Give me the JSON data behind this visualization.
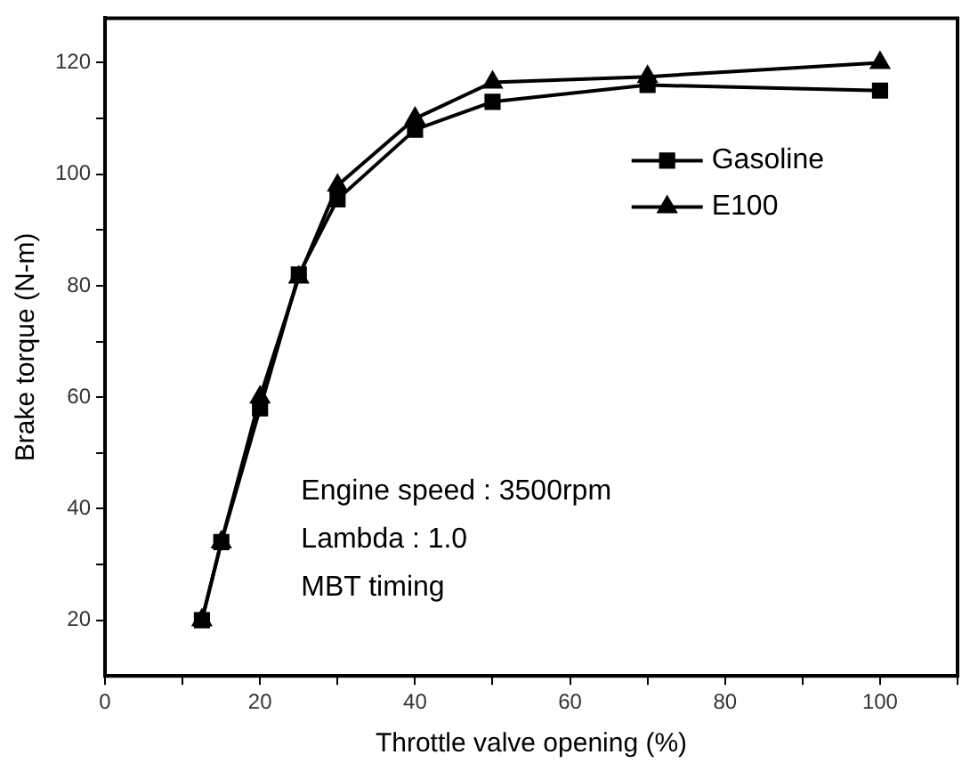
{
  "chart_data": {
    "type": "line",
    "xlabel": "Throttle valve opening (%)",
    "ylabel": "Brake torque (N-m)",
    "x": [
      12.5,
      15,
      20,
      25,
      30,
      40,
      50,
      70,
      100
    ],
    "series": [
      {
        "name": "Gasoline",
        "color": "#000000",
        "marker": "square",
        "values": [
          20,
          34,
          58,
          82,
          95.5,
          108,
          113,
          116,
          115
        ]
      },
      {
        "name": "E100",
        "color": "#000000",
        "marker": "triangle",
        "values": [
          20,
          34,
          60,
          81.5,
          98,
          110,
          116.5,
          117.5,
          120
        ]
      }
    ],
    "xlim": [
      0,
      110
    ],
    "xticks": [
      0,
      {
        "value": 10,
        "label": null
      },
      20,
      {
        "value": 30,
        "label": null
      },
      40,
      {
        "value": 50,
        "label": null
      },
      60,
      {
        "value": 70,
        "label": null
      },
      80,
      {
        "value": 90,
        "label": null
      },
      100,
      {
        "value": 110,
        "label": null
      }
    ],
    "ylim": [
      10,
      128
    ],
    "yticks": [
      20,
      {
        "value": 30,
        "label": null
      },
      40,
      {
        "value": 50,
        "label": null
      },
      60,
      {
        "value": 70,
        "label": null
      },
      80,
      {
        "value": 90,
        "label": null
      },
      100,
      {
        "value": 110,
        "label": null
      },
      120
    ],
    "grid": false,
    "legend": "top right",
    "line_style": "solid",
    "annotations": [
      "Engine speed : 3500rpm",
      "Lambda : 1.0",
      "MBT timing"
    ]
  }
}
